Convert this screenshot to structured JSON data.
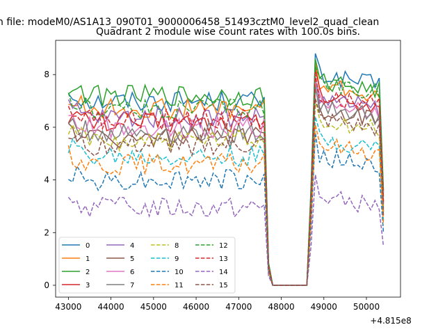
{
  "suptitle": "n file: modeM0/AS1A13_090T01_9000006458_51493cztM0_level2_quad_clean",
  "chart_data": {
    "type": "line",
    "title": "Quadrant 2 module wise count rates with 100.0s bins.",
    "xlabel": "",
    "ylabel": "",
    "x_offset_label": "+4.815e8",
    "x_ticks": [
      43000,
      44000,
      45000,
      46000,
      47000,
      48000,
      49000,
      50000
    ],
    "y_ticks": [
      0,
      2,
      4,
      6,
      8
    ],
    "xlim": [
      42700,
      50800
    ],
    "ylim": [
      -0.45,
      9.3
    ],
    "grid": false,
    "legend": {
      "placement": "lower-left",
      "columns": 4
    },
    "x": [
      43000,
      43100,
      43200,
      43300,
      43400,
      43500,
      43600,
      43700,
      43800,
      43900,
      44000,
      44100,
      44200,
      44300,
      44400,
      44500,
      44600,
      44700,
      44800,
      44900,
      45000,
      45100,
      45200,
      45300,
      45400,
      45500,
      45600,
      45700,
      45800,
      45900,
      46000,
      46100,
      46200,
      46300,
      46400,
      46500,
      46600,
      46700,
      46800,
      46900,
      47000,
      47100,
      47200,
      47300,
      47400,
      47500,
      47600,
      47700,
      47800,
      47900,
      48000,
      48100,
      48200,
      48300,
      48400,
      48500,
      48600,
      48700,
      48800,
      48900,
      49000,
      49100,
      49200,
      49300,
      49400,
      49500,
      49600,
      49700,
      49800,
      49900,
      50000,
      50100,
      50200,
      50300,
      50400
    ],
    "series": [
      {
        "name": "0",
        "color": "#1f77b4",
        "dash": false,
        "level": 7.0,
        "after": 7.6,
        "peak": 8.8
      },
      {
        "name": "1",
        "color": "#ff7f0e",
        "dash": false,
        "level": 6.7,
        "after": 7.2,
        "peak": 8.5
      },
      {
        "name": "2",
        "color": "#2ca02c",
        "dash": false,
        "level": 7.2,
        "after": 7.4,
        "peak": 8.6
      },
      {
        "name": "3",
        "color": "#d62728",
        "dash": false,
        "level": 6.2,
        "after": 6.8,
        "peak": 8.2
      },
      {
        "name": "4",
        "color": "#9467bd",
        "dash": false,
        "level": 6.4,
        "after": 6.7,
        "peak": 7.9
      },
      {
        "name": "5",
        "color": "#8c564b",
        "dash": false,
        "level": 5.6,
        "after": 6.3,
        "peak": 7.5
      },
      {
        "name": "6",
        "color": "#e377c2",
        "dash": false,
        "level": 6.0,
        "after": 6.6,
        "peak": 7.8
      },
      {
        "name": "7",
        "color": "#7f7f7f",
        "dash": false,
        "level": 5.8,
        "after": 6.4,
        "peak": 7.6
      },
      {
        "name": "8",
        "color": "#bcbd22",
        "dash": true,
        "level": 5.5,
        "after": 5.9,
        "peak": 7.0
      },
      {
        "name": "9",
        "color": "#17becf",
        "dash": true,
        "level": 4.9,
        "after": 5.2,
        "peak": 6.4
      },
      {
        "name": "10",
        "color": "#1f77b4",
        "dash": true,
        "level": 4.0,
        "after": 4.5,
        "peak": 5.8
      },
      {
        "name": "11",
        "color": "#ff7f0e",
        "dash": true,
        "level": 4.6,
        "after": 5.0,
        "peak": 6.1
      },
      {
        "name": "12",
        "color": "#2ca02c",
        "dash": true,
        "level": 6.7,
        "after": 7.3,
        "peak": 8.3
      },
      {
        "name": "13",
        "color": "#d62728",
        "dash": true,
        "level": 6.3,
        "after": 6.9,
        "peak": 8.0
      },
      {
        "name": "14",
        "color": "#9467bd",
        "dash": true,
        "level": 2.95,
        "after": 3.0,
        "peak": 4.2
      },
      {
        "name": "15",
        "color": "#8c564b",
        "dash": true,
        "level": 5.3,
        "after": 5.9,
        "peak": 7.1
      }
    ]
  }
}
